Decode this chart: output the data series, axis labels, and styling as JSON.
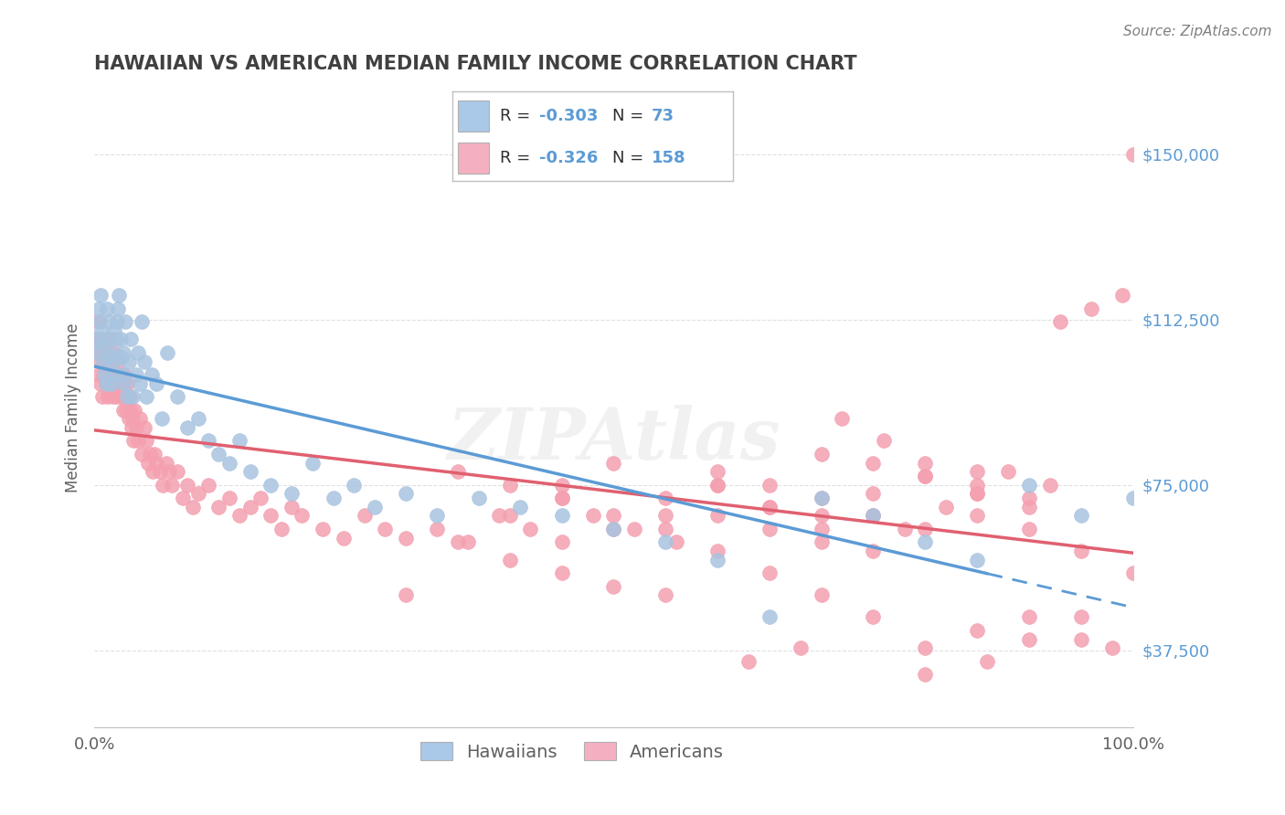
{
  "title": "HAWAIIAN VS AMERICAN MEDIAN FAMILY INCOME CORRELATION CHART",
  "source_text": "Source: ZipAtlas.com",
  "ylabel": "Median Family Income",
  "xlim": [
    0,
    1
  ],
  "ylim": [
    20000,
    165000
  ],
  "yticks": [
    37500,
    75000,
    112500,
    150000
  ],
  "ytick_labels": [
    "$37,500",
    "$75,000",
    "$112,500",
    "$150,000"
  ],
  "xtick_labels": [
    "0.0%",
    "100.0%"
  ],
  "hawaiians_R": "-0.303",
  "hawaiians_N": "73",
  "americans_R": "-0.326",
  "americans_N": "158",
  "watermark": "ZIPAtlas",
  "blue_color": "#a8c4e0",
  "pink_color": "#f4a0b0",
  "blue_line_color": "#5b9bd5",
  "pink_line_color": "#e06070",
  "blue_legend_color": "#aac8e8",
  "pink_legend_color": "#f4b0c0",
  "title_color": "#404040",
  "source_color": "#808080",
  "grid_color": "#e0e0e0",
  "hawaiians_x": [
    0.002,
    0.003,
    0.004,
    0.005,
    0.006,
    0.007,
    0.008,
    0.009,
    0.01,
    0.011,
    0.012,
    0.013,
    0.014,
    0.015,
    0.016,
    0.017,
    0.018,
    0.019,
    0.02,
    0.021,
    0.022,
    0.023,
    0.024,
    0.025,
    0.026,
    0.027,
    0.028,
    0.029,
    0.03,
    0.032,
    0.033,
    0.035,
    0.037,
    0.04,
    0.042,
    0.044,
    0.046,
    0.048,
    0.05,
    0.055,
    0.06,
    0.065,
    0.07,
    0.08,
    0.09,
    0.1,
    0.11,
    0.12,
    0.13,
    0.14,
    0.15,
    0.17,
    0.19,
    0.21,
    0.23,
    0.25,
    0.27,
    0.3,
    0.33,
    0.37,
    0.41,
    0.45,
    0.5,
    0.55,
    0.6,
    0.65,
    0.7,
    0.75,
    0.8,
    0.85,
    0.9,
    0.95,
    1.0
  ],
  "hawaiians_y": [
    105000,
    108000,
    115000,
    112000,
    118000,
    110000,
    107000,
    103000,
    100000,
    98000,
    115000,
    108000,
    104000,
    112000,
    105000,
    98000,
    103000,
    110000,
    100000,
    108000,
    112000,
    115000,
    118000,
    108000,
    104000,
    100000,
    105000,
    98000,
    112000,
    95000,
    103000,
    108000,
    95000,
    100000,
    105000,
    98000,
    112000,
    103000,
    95000,
    100000,
    98000,
    90000,
    105000,
    95000,
    88000,
    90000,
    85000,
    82000,
    80000,
    85000,
    78000,
    75000,
    73000,
    80000,
    72000,
    75000,
    70000,
    73000,
    68000,
    72000,
    70000,
    68000,
    65000,
    62000,
    58000,
    45000,
    72000,
    68000,
    62000,
    58000,
    75000,
    68000,
    72000
  ],
  "americans_x": [
    0.001,
    0.002,
    0.003,
    0.004,
    0.005,
    0.006,
    0.007,
    0.008,
    0.009,
    0.01,
    0.011,
    0.012,
    0.013,
    0.014,
    0.015,
    0.016,
    0.017,
    0.018,
    0.019,
    0.02,
    0.021,
    0.022,
    0.023,
    0.024,
    0.025,
    0.026,
    0.027,
    0.028,
    0.029,
    0.03,
    0.031,
    0.032,
    0.033,
    0.034,
    0.035,
    0.036,
    0.037,
    0.038,
    0.039,
    0.04,
    0.042,
    0.044,
    0.046,
    0.048,
    0.05,
    0.052,
    0.054,
    0.056,
    0.058,
    0.06,
    0.063,
    0.066,
    0.069,
    0.072,
    0.075,
    0.08,
    0.085,
    0.09,
    0.095,
    0.1,
    0.11,
    0.12,
    0.13,
    0.14,
    0.15,
    0.16,
    0.17,
    0.18,
    0.19,
    0.2,
    0.22,
    0.24,
    0.26,
    0.28,
    0.3,
    0.33,
    0.36,
    0.39,
    0.42,
    0.45,
    0.48,
    0.52,
    0.56,
    0.6,
    0.65,
    0.7,
    0.75,
    0.8,
    0.85,
    0.9,
    0.93,
    0.96,
    0.99,
    1.0,
    0.45,
    0.5,
    0.55,
    0.6,
    0.65,
    0.7,
    0.75,
    0.8,
    0.85,
    0.9,
    0.4,
    0.45,
    0.5,
    0.55,
    0.6,
    0.65,
    0.7,
    0.75,
    0.8,
    0.85,
    0.88,
    0.92,
    0.7,
    0.75,
    0.78,
    0.82,
    0.86,
    0.9,
    0.95,
    0.98,
    0.35,
    0.4,
    0.45,
    0.5,
    0.55,
    0.6,
    0.65,
    0.7,
    0.75,
    0.8,
    0.85,
    0.9,
    0.95,
    1.0,
    0.3,
    0.35,
    0.4,
    0.45,
    0.5,
    0.55,
    0.6,
    0.65,
    0.7,
    0.75,
    0.8,
    0.85,
    0.9,
    0.95,
    0.63,
    0.68,
    0.72,
    0.76,
    0.8,
    0.85
  ],
  "americans_y": [
    108000,
    105000,
    112000,
    100000,
    103000,
    98000,
    108000,
    95000,
    100000,
    105000,
    98000,
    103000,
    95000,
    108000,
    100000,
    98000,
    103000,
    95000,
    105000,
    98000,
    100000,
    95000,
    103000,
    98000,
    100000,
    95000,
    98000,
    92000,
    100000,
    95000,
    92000,
    98000,
    90000,
    95000,
    92000,
    88000,
    90000,
    85000,
    92000,
    88000,
    85000,
    90000,
    82000,
    88000,
    85000,
    80000,
    82000,
    78000,
    82000,
    80000,
    78000,
    75000,
    80000,
    78000,
    75000,
    78000,
    72000,
    75000,
    70000,
    73000,
    75000,
    70000,
    72000,
    68000,
    70000,
    72000,
    68000,
    65000,
    70000,
    68000,
    65000,
    63000,
    68000,
    65000,
    63000,
    65000,
    62000,
    68000,
    65000,
    62000,
    68000,
    65000,
    62000,
    68000,
    65000,
    62000,
    68000,
    65000,
    78000,
    72000,
    112000,
    115000,
    118000,
    150000,
    75000,
    80000,
    72000,
    78000,
    75000,
    82000,
    80000,
    77000,
    73000,
    70000,
    68000,
    72000,
    65000,
    68000,
    75000,
    70000,
    68000,
    73000,
    77000,
    73000,
    78000,
    75000,
    72000,
    68000,
    65000,
    70000,
    35000,
    40000,
    45000,
    38000,
    62000,
    58000,
    55000,
    52000,
    50000,
    75000,
    70000,
    65000,
    60000,
    32000,
    68000,
    65000,
    60000,
    55000,
    50000,
    78000,
    75000,
    72000,
    68000,
    65000,
    60000,
    55000,
    50000,
    45000,
    38000,
    42000,
    45000,
    40000,
    35000,
    38000,
    90000,
    85000,
    80000,
    75000
  ]
}
